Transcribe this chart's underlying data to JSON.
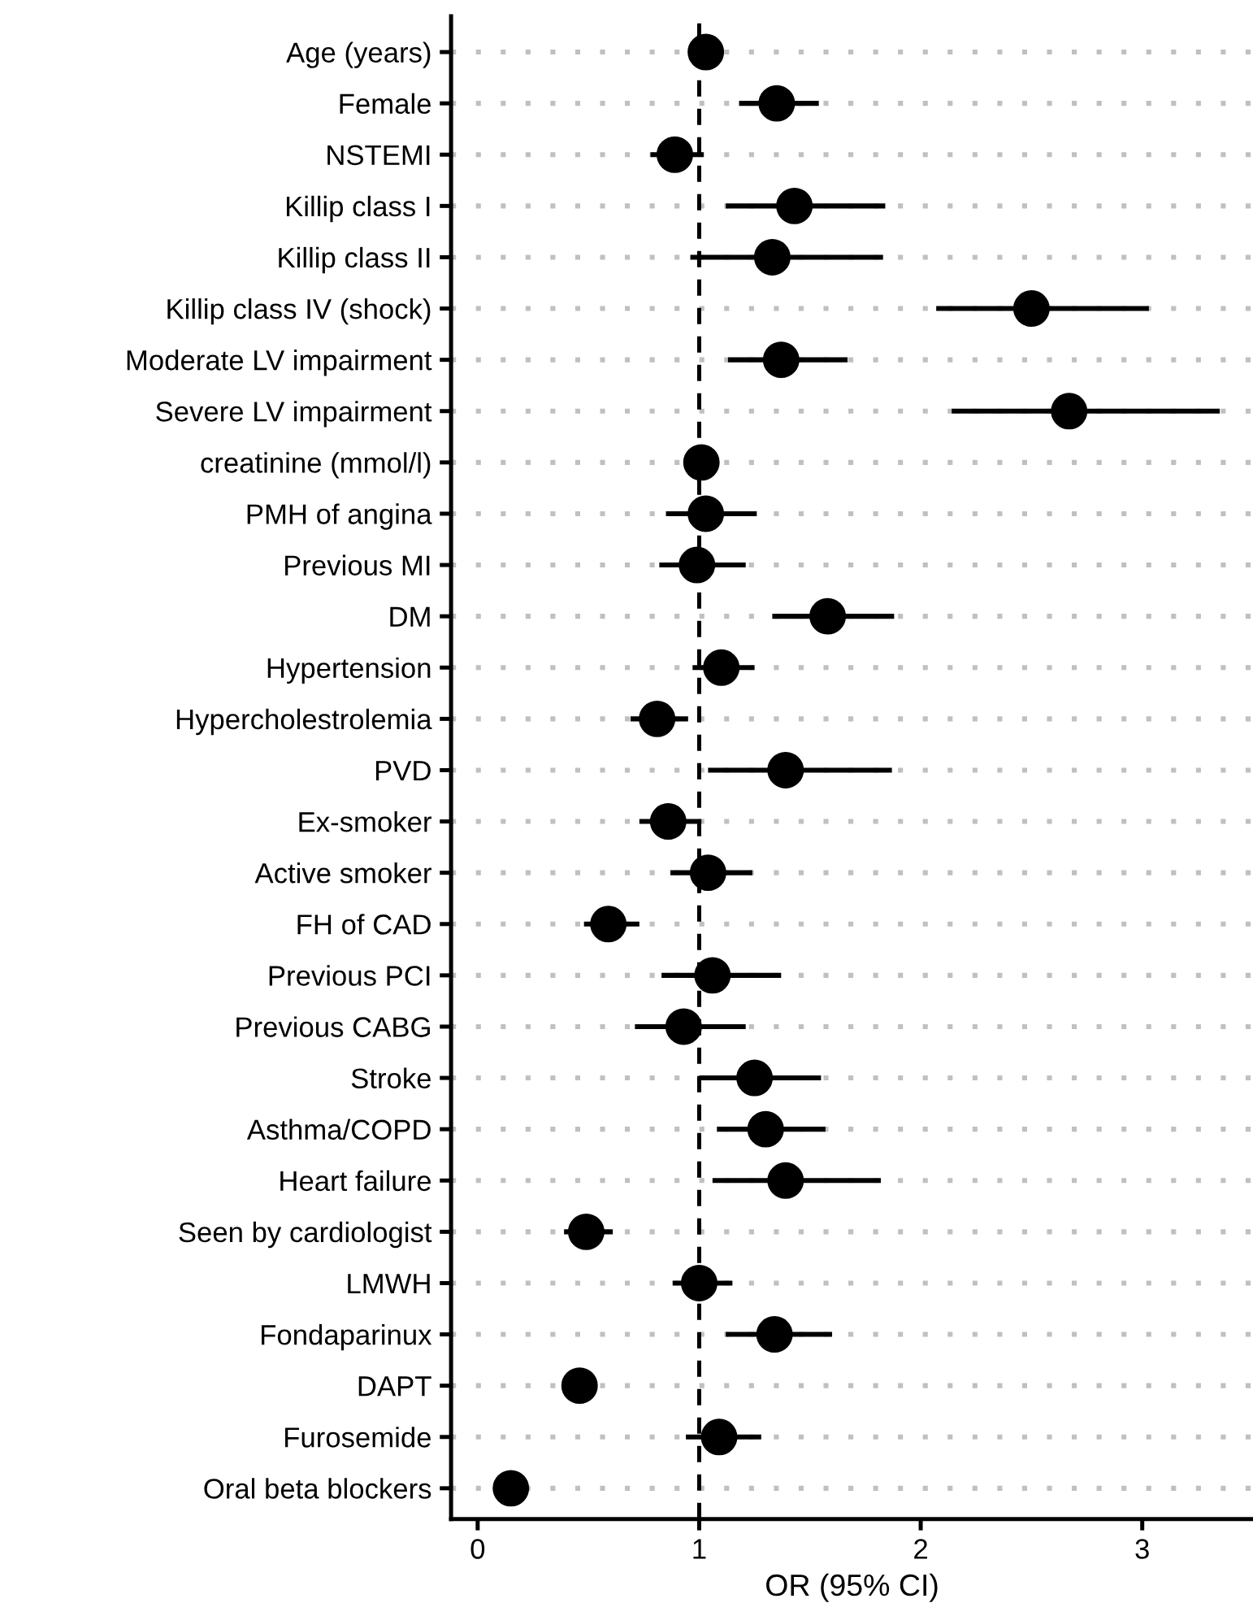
{
  "chart_data": {
    "type": "scatter",
    "orientation": "horizontal",
    "xlabel": "OR (95% CI)",
    "categories": [
      "Age (years)",
      "Female",
      "NSTEMI",
      "Killip class I",
      "Killip class II",
      "Killip class IV (shock)",
      "Moderate LV impairment",
      "Severe LV impairment",
      "creatinine (mmol/l)",
      "PMH of angina",
      "Previous MI",
      "DM",
      "Hypertension",
      "Hypercholestrolemia",
      "PVD",
      "Ex-smoker",
      "Active smoker",
      "FH of CAD",
      "Previous PCI",
      "Previous CABG",
      "Stroke",
      "Asthma/COPD",
      "Heart failure",
      "Seen by cardiologist",
      "LMWH",
      "Fondaparinux",
      "DAPT",
      "Furosemide",
      "Oral beta blockers"
    ],
    "values": [
      1.03,
      1.35,
      0.89,
      1.43,
      1.33,
      2.5,
      1.37,
      2.67,
      1.01,
      1.03,
      0.99,
      1.58,
      1.1,
      0.81,
      1.39,
      0.86,
      1.04,
      0.59,
      1.06,
      0.93,
      1.25,
      1.3,
      1.39,
      0.49,
      1.0,
      1.34,
      0.46,
      1.09,
      0.15
    ],
    "errors": [
      null,
      [
        1.18,
        1.54
      ],
      [
        0.78,
        1.02
      ],
      [
        1.12,
        1.84
      ],
      [
        0.96,
        1.83
      ],
      [
        2.07,
        3.03
      ],
      [
        1.13,
        1.67
      ],
      [
        2.14,
        3.35
      ],
      null,
      [
        0.85,
        1.26
      ],
      [
        0.82,
        1.21
      ],
      [
        1.33,
        1.88
      ],
      [
        0.97,
        1.25
      ],
      [
        0.69,
        0.95
      ],
      [
        1.04,
        1.87
      ],
      [
        0.73,
        1.01
      ],
      [
        0.87,
        1.24
      ],
      [
        0.48,
        0.73
      ],
      [
        0.83,
        1.37
      ],
      [
        0.71,
        1.21
      ],
      [
        1.0,
        1.55
      ],
      [
        1.08,
        1.57
      ],
      [
        1.06,
        1.82
      ],
      [
        0.39,
        0.61
      ],
      [
        0.88,
        1.15
      ],
      [
        1.12,
        1.6
      ],
      null,
      [
        0.94,
        1.28
      ],
      null
    ],
    "color": "#000000",
    "marker": "circle",
    "xlim": [
      -0.12,
      3.5
    ],
    "xticks": [
      0,
      1,
      2,
      3
    ],
    "grid": "y",
    "ref_lines": [
      {
        "axis": "x",
        "value": 1,
        "line_style": "dashed",
        "color": "#000000"
      }
    ]
  }
}
